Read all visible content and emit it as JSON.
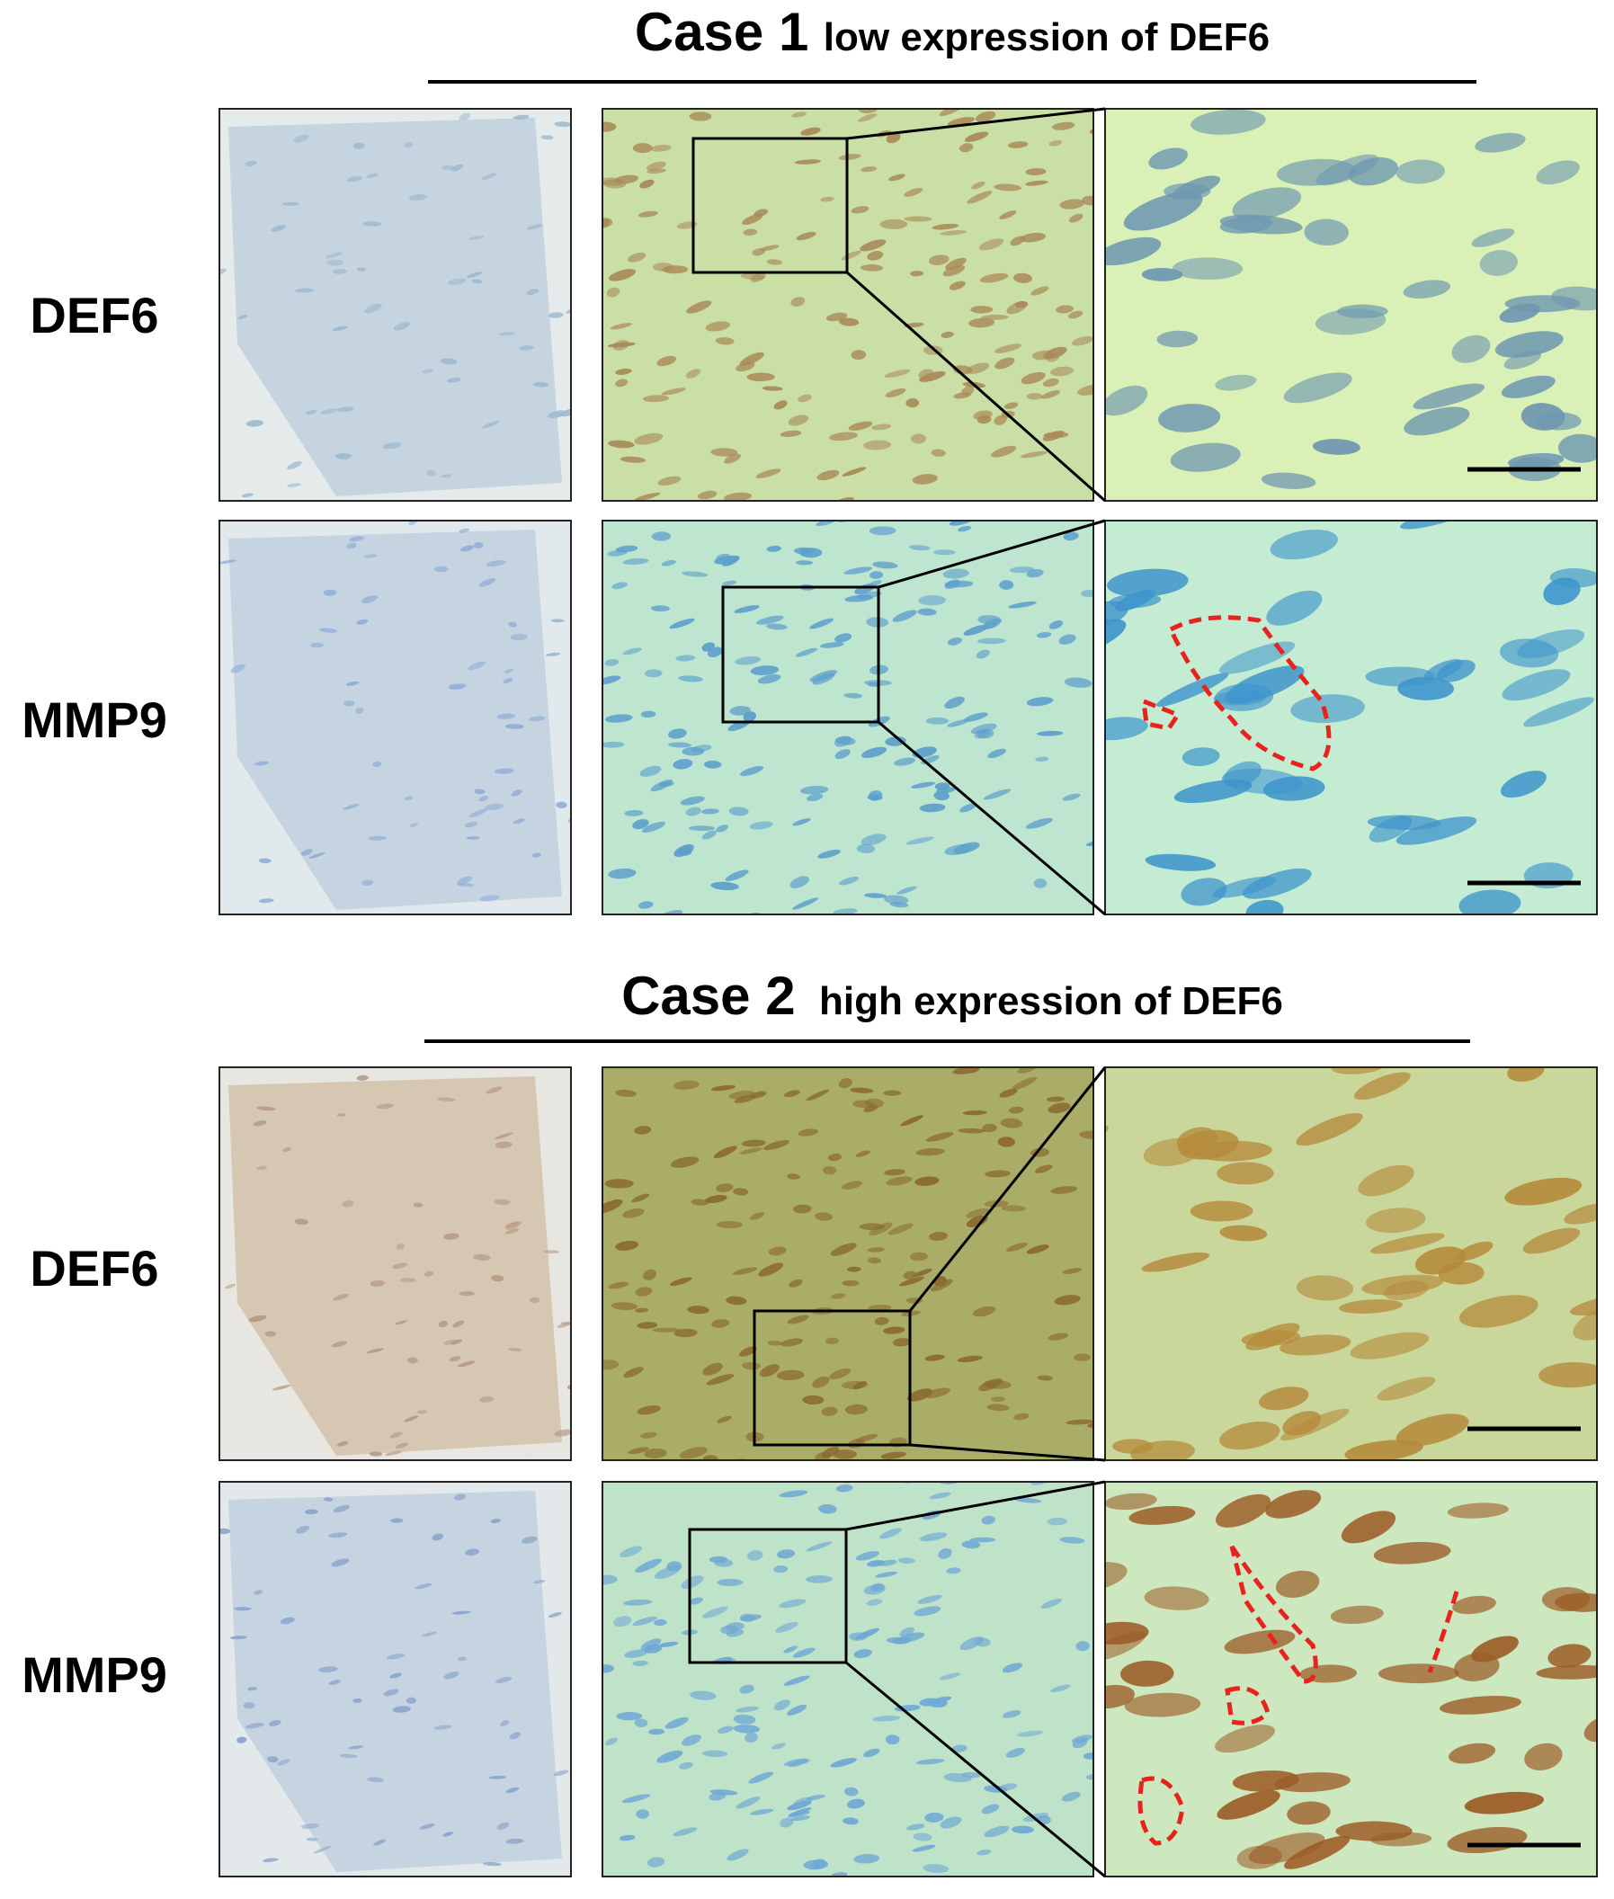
{
  "case_1": {
    "title": "Case 1",
    "subtitle": "low expression of DEF6",
    "rows": [
      "DEF6",
      "MMP9"
    ]
  },
  "case_2": {
    "title": "Case 2",
    "subtitle": "high expression of DEF6",
    "rows": [
      "DEF6",
      "MMP9"
    ]
  }
}
